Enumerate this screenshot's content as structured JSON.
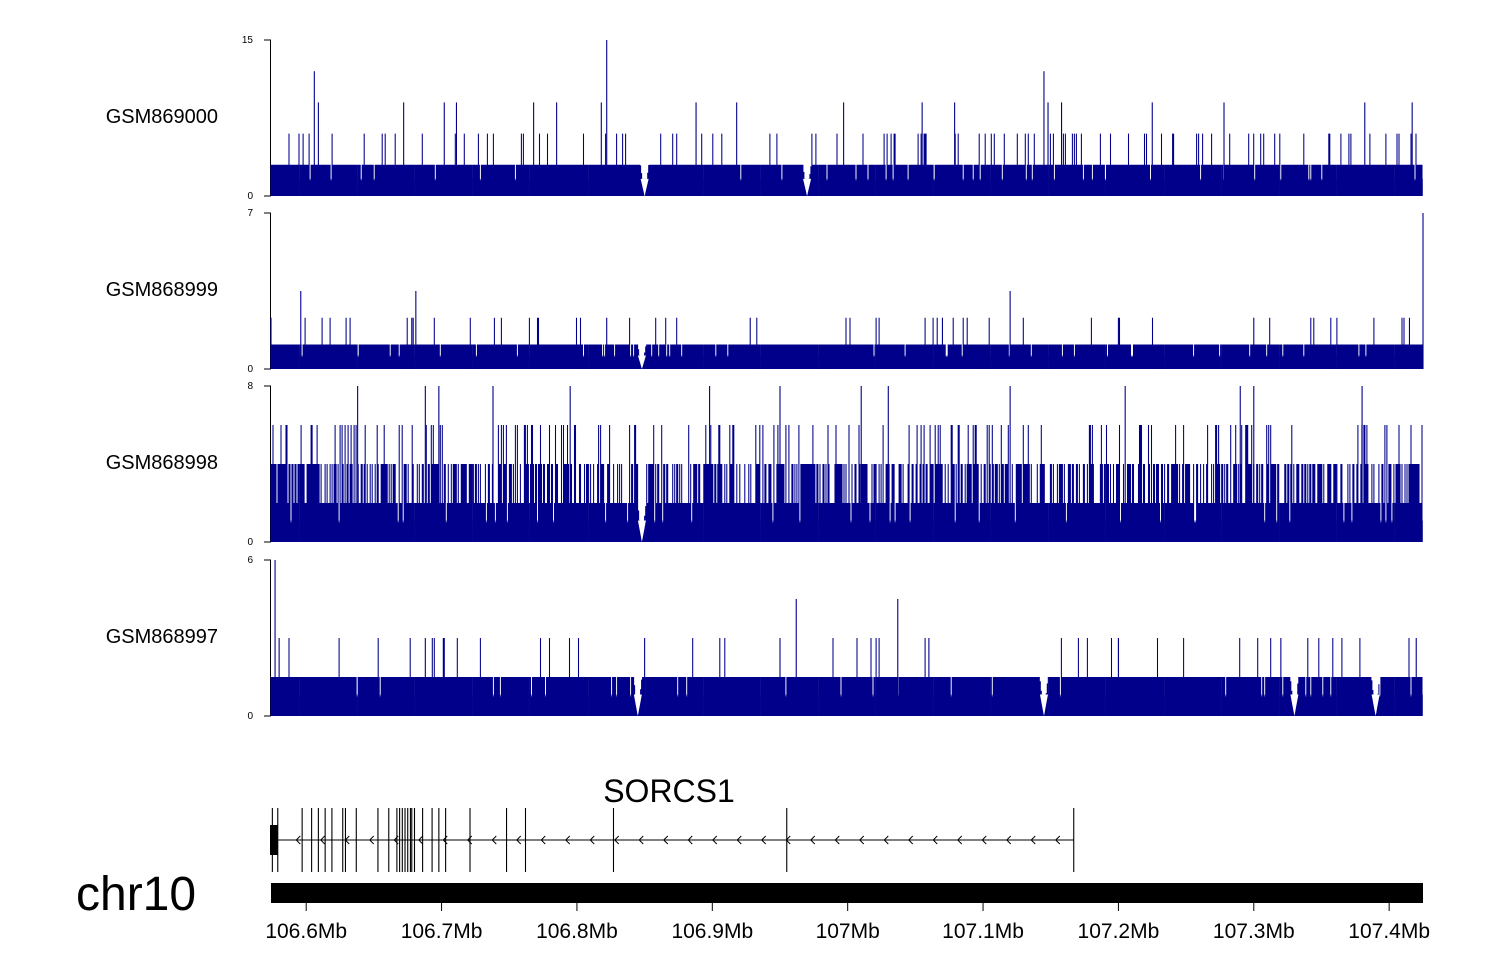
{
  "chart_data": {
    "type": "genome-tracks",
    "chromosome": "chr10",
    "x_unit": "Mb",
    "xlim": [
      106.574,
      107.425
    ],
    "x_ticks": [
      {
        "value": 106.6,
        "label": "106.6Mb"
      },
      {
        "value": 106.7,
        "label": "106.7Mb"
      },
      {
        "value": 106.8,
        "label": "106.8Mb"
      },
      {
        "value": 106.9,
        "label": "106.9Mb"
      },
      {
        "value": 107.0,
        "label": "107Mb"
      },
      {
        "value": 107.1,
        "label": "107.1Mb"
      },
      {
        "value": 107.2,
        "label": "107.2Mb"
      },
      {
        "value": 107.3,
        "label": "107.3Mb"
      },
      {
        "value": 107.4,
        "label": "107.4Mb"
      }
    ],
    "series_color": "#00008b",
    "tracks": [
      {
        "name": "GSM869000",
        "ylim": [
          0,
          15
        ],
        "y_tick_labels": [
          "0",
          "15"
        ],
        "base_level": 3,
        "secondary_level": 6,
        "secondary_density": 0.085,
        "seed": 11,
        "peaks": [
          {
            "x": 106.606,
            "y": 12
          },
          {
            "x": 106.609,
            "y": 9
          },
          {
            "x": 106.672,
            "y": 9
          },
          {
            "x": 106.702,
            "y": 9
          },
          {
            "x": 106.711,
            "y": 9
          },
          {
            "x": 106.768,
            "y": 9
          },
          {
            "x": 106.785,
            "y": 9
          },
          {
            "x": 106.822,
            "y": 15
          },
          {
            "x": 106.818,
            "y": 9
          },
          {
            "x": 106.888,
            "y": 9
          },
          {
            "x": 106.918,
            "y": 9
          },
          {
            "x": 106.997,
            "y": 9
          },
          {
            "x": 107.055,
            "y": 9
          },
          {
            "x": 107.079,
            "y": 9
          },
          {
            "x": 107.145,
            "y": 12
          },
          {
            "x": 107.148,
            "y": 9
          },
          {
            "x": 107.158,
            "y": 9
          },
          {
            "x": 107.225,
            "y": 9
          },
          {
            "x": 107.278,
            "y": 9
          },
          {
            "x": 107.382,
            "y": 9
          },
          {
            "x": 107.417,
            "y": 9
          }
        ],
        "dips": [
          106.85,
          106.97
        ]
      },
      {
        "name": "GSM868999",
        "ylim": [
          0,
          7
        ],
        "y_tick_labels": [
          "0",
          "7"
        ],
        "base_level": 1.1,
        "secondary_level": 2.3,
        "secondary_density": 0.04,
        "seed": 23,
        "peaks": [
          {
            "x": 106.574,
            "y": 2.3
          },
          {
            "x": 106.596,
            "y": 3.5
          },
          {
            "x": 106.678,
            "y": 2.3
          },
          {
            "x": 106.681,
            "y": 3.5
          },
          {
            "x": 106.822,
            "y": 2.3
          },
          {
            "x": 106.928,
            "y": 2.3
          },
          {
            "x": 107.07,
            "y": 2.3
          },
          {
            "x": 107.12,
            "y": 3.5
          },
          {
            "x": 107.2,
            "y": 2.3
          },
          {
            "x": 107.3,
            "y": 2.3
          },
          {
            "x": 107.415,
            "y": 2.3
          },
          {
            "x": 107.425,
            "y": 7
          }
        ],
        "dips": [
          106.848
        ]
      },
      {
        "name": "GSM868998",
        "ylim": [
          0,
          8
        ],
        "y_tick_labels": [
          "0",
          "8"
        ],
        "base_level": 2,
        "secondary_level": 4,
        "secondary_density": 0.5,
        "tertiary_level": 6,
        "tertiary_density": 0.12,
        "seed": 37,
        "peaks": [
          {
            "x": 106.638,
            "y": 8
          },
          {
            "x": 106.688,
            "y": 8
          },
          {
            "x": 106.698,
            "y": 8
          },
          {
            "x": 106.738,
            "y": 8
          },
          {
            "x": 106.795,
            "y": 8
          },
          {
            "x": 106.898,
            "y": 8
          },
          {
            "x": 106.95,
            "y": 8
          },
          {
            "x": 107.01,
            "y": 8
          },
          {
            "x": 107.03,
            "y": 8
          },
          {
            "x": 107.12,
            "y": 8
          },
          {
            "x": 107.205,
            "y": 8
          },
          {
            "x": 107.29,
            "y": 8
          },
          {
            "x": 107.3,
            "y": 8
          },
          {
            "x": 107.38,
            "y": 8
          }
        ],
        "dips": [
          106.848
        ]
      },
      {
        "name": "GSM868997",
        "ylim": [
          0,
          6
        ],
        "y_tick_labels": [
          "0",
          "6"
        ],
        "base_level": 1.5,
        "secondary_level": 3,
        "secondary_density": 0.035,
        "seed": 53,
        "peaks": [
          {
            "x": 106.577,
            "y": 6
          },
          {
            "x": 106.58,
            "y": 3
          },
          {
            "x": 106.688,
            "y": 3
          },
          {
            "x": 106.85,
            "y": 3
          },
          {
            "x": 106.95,
            "y": 3
          },
          {
            "x": 106.962,
            "y": 4.5
          },
          {
            "x": 107.037,
            "y": 4.5
          },
          {
            "x": 107.06,
            "y": 3
          },
          {
            "x": 107.2,
            "y": 3
          },
          {
            "x": 107.32,
            "y": 3
          },
          {
            "x": 107.42,
            "y": 3
          }
        ],
        "dips": [
          106.845,
          107.145,
          107.33,
          107.39
        ]
      }
    ],
    "gene": {
      "name": "SORCS1",
      "start": 106.574,
      "end": 107.167,
      "strand": "-",
      "exons": [
        106.575,
        106.579,
        106.597,
        106.604,
        106.609,
        106.614,
        106.619,
        106.627,
        106.629,
        106.637,
        106.653,
        106.661,
        106.667,
        106.669,
        106.671,
        106.673,
        106.675,
        106.677,
        106.678,
        106.68,
        106.686,
        106.693,
        106.698,
        106.703,
        106.721,
        106.748,
        106.762,
        106.827,
        106.955,
        107.167
      ]
    }
  }
}
